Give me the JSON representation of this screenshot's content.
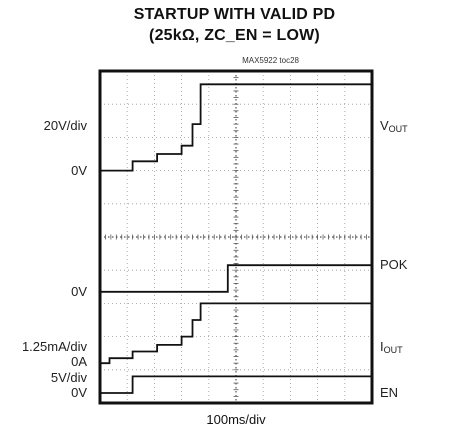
{
  "chart_data": {
    "type": "line",
    "title": "STARTUP WITH VALID PD",
    "subtitle": "(25kΩ, ZC_EN = LOW)",
    "figure_id": "MAX5922 toc28",
    "xlabel": "100ms/div",
    "grid": true,
    "grid_divisions": {
      "x": 10,
      "y": 10
    },
    "left_labels": [
      {
        "text": "20V/div",
        "div": 1.65
      },
      {
        "text": "0V",
        "div": 3.0
      },
      {
        "text": "0V",
        "div": 6.65
      },
      {
        "text": "1.25mA/div",
        "div": 8.3
      },
      {
        "text": "0A",
        "div": 8.75
      },
      {
        "text": "5V/div",
        "div": 9.25
      },
      {
        "text": "0V",
        "div": 9.7
      }
    ],
    "right_labels": [
      {
        "text": "V",
        "sub": "OUT",
        "div": 1.65
      },
      {
        "text": "POK",
        "div": 5.85
      },
      {
        "text": "I",
        "sub": "OUT",
        "div": 8.3
      },
      {
        "text": "EN",
        "div": 9.7
      }
    ],
    "series": [
      {
        "name": "VOUT",
        "x": [
          0,
          1.2,
          1.2,
          2.1,
          2.1,
          3.0,
          3.0,
          3.4,
          3.4,
          3.7,
          3.7,
          10
        ],
        "y": [
          3.0,
          3.0,
          2.72,
          2.72,
          2.5,
          2.5,
          2.25,
          2.25,
          1.6,
          1.6,
          0.4,
          0.4
        ]
      },
      {
        "name": "POK",
        "x": [
          0,
          4.7,
          4.7,
          10
        ],
        "y": [
          6.65,
          6.65,
          5.85,
          5.85
        ]
      },
      {
        "name": "IOUT",
        "x": [
          0,
          0.35,
          0.35,
          1.2,
          1.2,
          2.1,
          2.1,
          3.0,
          3.0,
          3.4,
          3.4,
          3.7,
          3.7,
          10
        ],
        "y": [
          8.8,
          8.8,
          8.65,
          8.65,
          8.45,
          8.45,
          8.25,
          8.25,
          8.0,
          8.0,
          7.5,
          7.5,
          7.0,
          7.0
        ]
      },
      {
        "name": "EN",
        "x": [
          0,
          1.2,
          1.2,
          10
        ],
        "y": [
          9.7,
          9.7,
          9.2,
          9.2
        ]
      }
    ]
  }
}
